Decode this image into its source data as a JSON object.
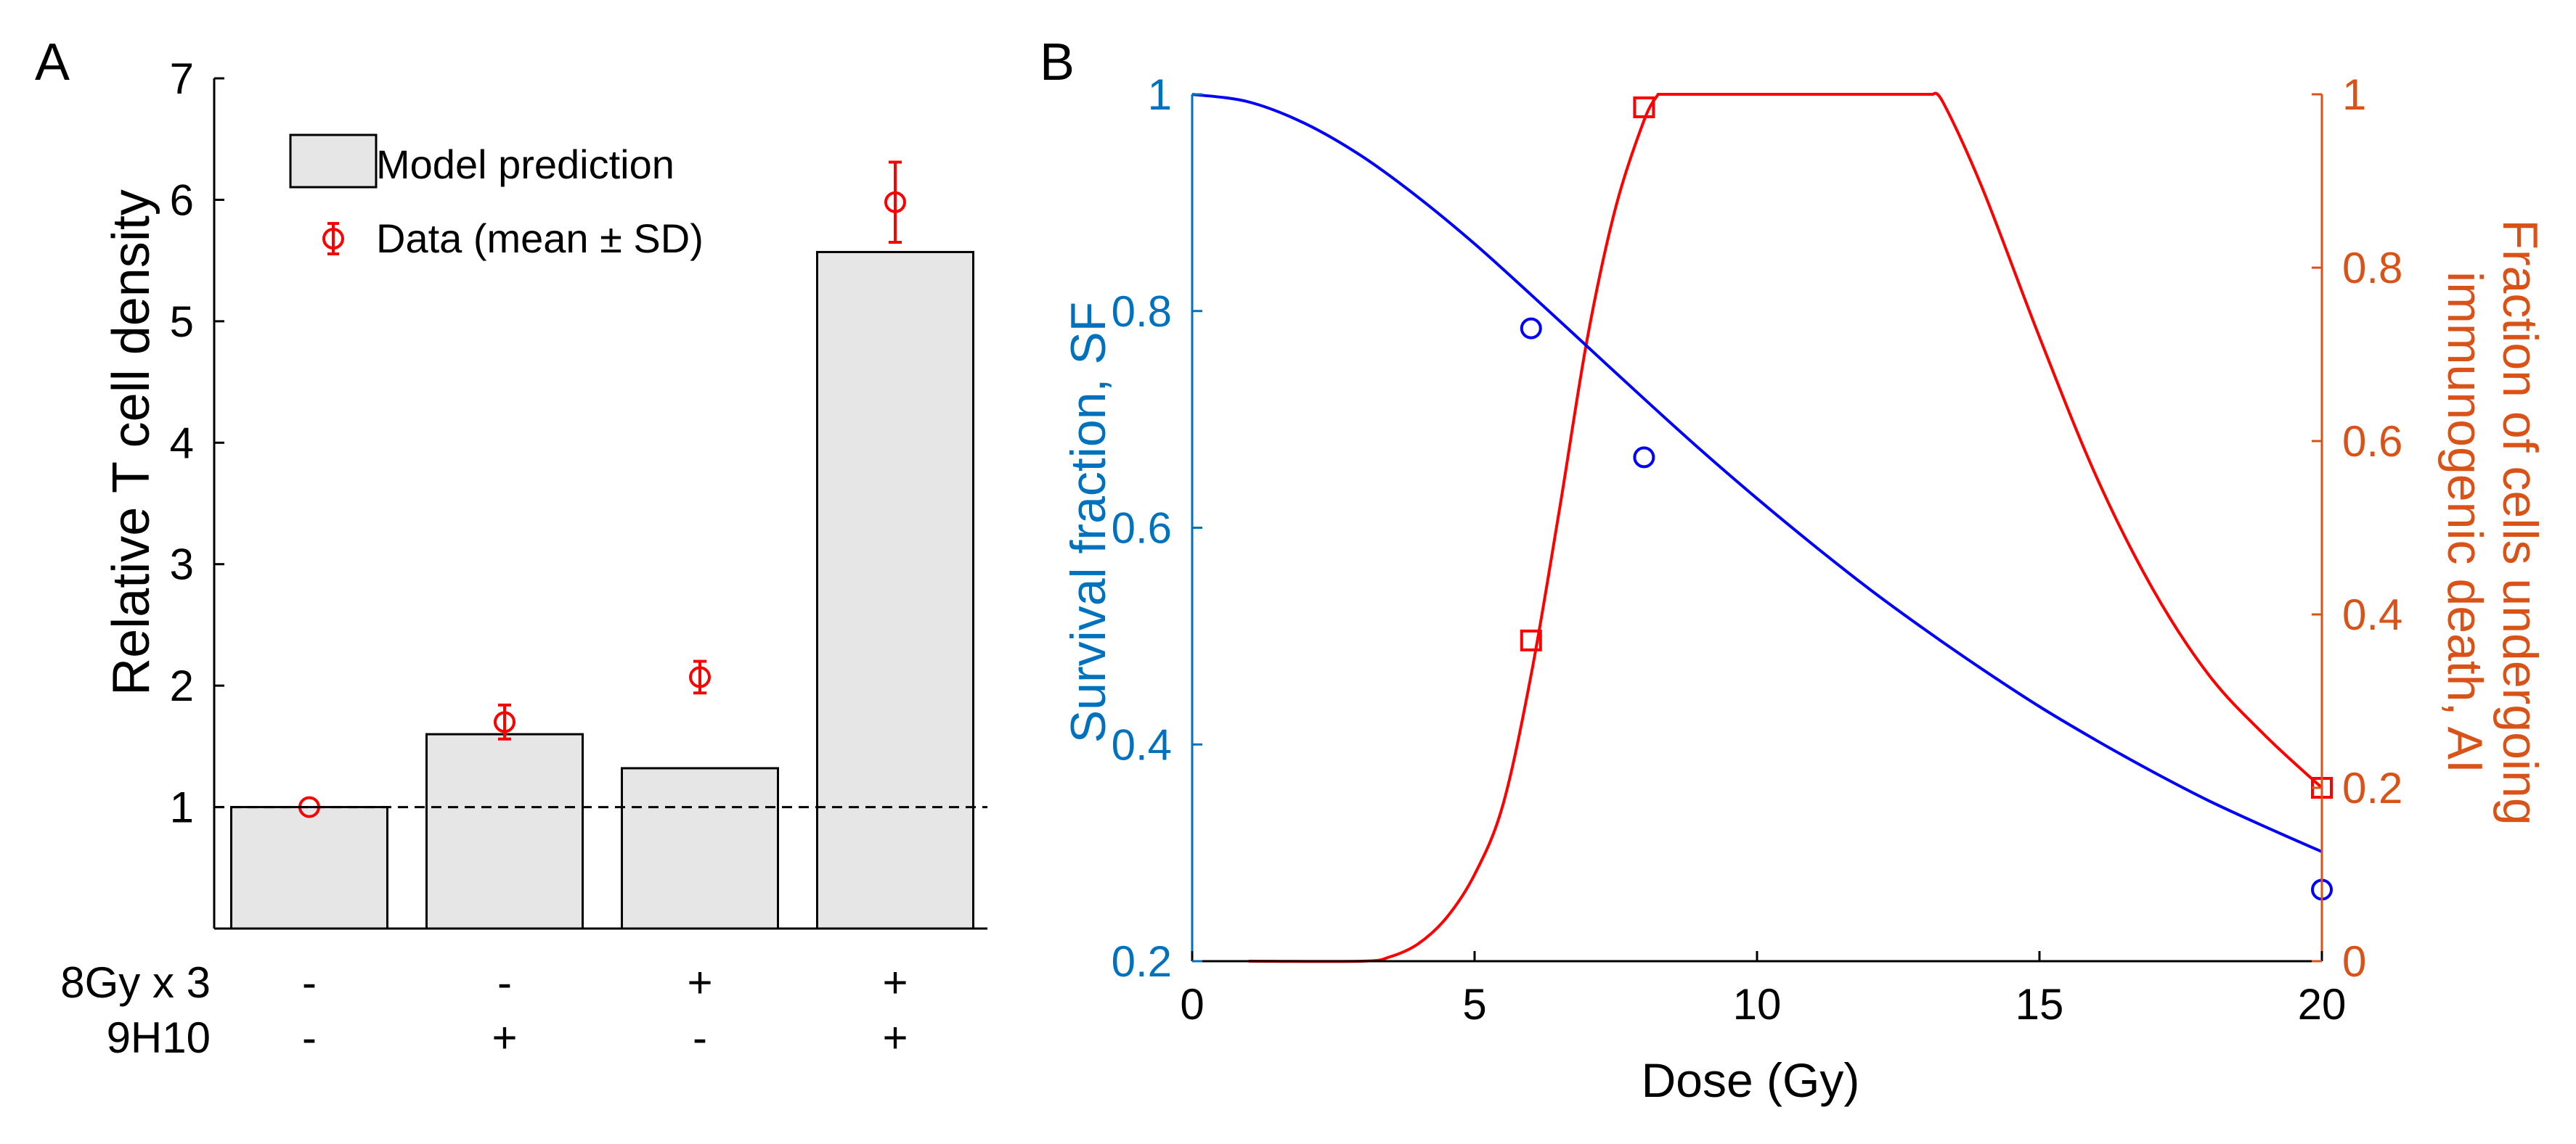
{
  "colors": {
    "blue_axis": "#0072BD",
    "orange_axis": "#D95319",
    "blue_line": "#0000FF",
    "red_line": "#FF0000",
    "bar_fill": "#E6E6E6",
    "black": "#000000"
  },
  "chart_data": [
    {
      "panel_label": "A",
      "type": "bar",
      "ylabel": "Relative T cell density",
      "ylim": [
        0,
        7
      ],
      "yticks": [
        "1",
        "2",
        "3",
        "4",
        "5",
        "6",
        "7"
      ],
      "reference_line": 1,
      "categories": [
        "1",
        "2",
        "3",
        "4"
      ],
      "condition_rows": [
        {
          "label": "8Gy x 3",
          "values": [
            "-",
            "-",
            "+",
            "+"
          ]
        },
        {
          "label": "9H10",
          "values": [
            "-",
            "+",
            "-",
            "+"
          ]
        }
      ],
      "series": [
        {
          "name": "Model prediction",
          "kind": "bar",
          "values": [
            1.0,
            1.6,
            1.32,
            5.57
          ]
        },
        {
          "name": "Data (mean ± SD)",
          "kind": "errorbar",
          "values": [
            1.0,
            1.7,
            2.07,
            5.98
          ],
          "sd": [
            0.0,
            0.14,
            0.13,
            0.33
          ]
        }
      ],
      "legend": {
        "position": "top-left",
        "bar_label": "Model prediction",
        "data_label": "Data (mean ± SD)"
      }
    },
    {
      "panel_label": "B",
      "type": "line",
      "xlabel": "Dose (Gy)",
      "xlim": [
        0,
        20
      ],
      "xticks": [
        "0",
        "5",
        "10",
        "15",
        "20"
      ],
      "left_axis": {
        "label": "Survival fraction, SF",
        "ylim": [
          0.2,
          1.0
        ],
        "ticks": [
          "0.2",
          "0.4",
          "0.6",
          "0.8",
          "1"
        ]
      },
      "right_axis": {
        "label_line1": "Fraction of cells undergoing",
        "label_line2": "immunogenic death, AI",
        "ylim": [
          0,
          1
        ],
        "ticks": [
          "0",
          "0.2",
          "0.4",
          "0.6",
          "0.8",
          "1"
        ]
      },
      "series": [
        {
          "name": "Survival fraction model",
          "axis": "left",
          "kind": "line",
          "x": [
            0,
            1,
            2,
            3,
            4,
            5,
            6,
            7,
            8,
            9,
            10,
            11,
            12,
            13,
            14,
            15,
            16,
            17,
            18,
            19,
            20
          ],
          "y": [
            1.0,
            0.993,
            0.973,
            0.943,
            0.905,
            0.862,
            0.815,
            0.767,
            0.719,
            0.672,
            0.627,
            0.584,
            0.543,
            0.505,
            0.469,
            0.435,
            0.404,
            0.375,
            0.348,
            0.324,
            0.301
          ]
        },
        {
          "name": "Survival fraction data",
          "axis": "left",
          "kind": "markers",
          "marker": "circle",
          "x": [
            6,
            8,
            20
          ],
          "y": [
            0.784,
            0.665,
            0.266
          ]
        },
        {
          "name": "Immunogenic death model",
          "axis": "right",
          "kind": "line",
          "x": [
            1,
            3,
            3.5,
            4,
            4.5,
            5,
            5.5,
            6,
            6.5,
            7,
            7.5,
            8,
            8.25,
            13.1,
            13.3,
            14,
            15,
            16,
            17,
            18,
            19,
            20
          ],
          "y": [
            0.0,
            0.0,
            0.005,
            0.02,
            0.05,
            0.1,
            0.18,
            0.33,
            0.52,
            0.72,
            0.87,
            0.97,
            1.0,
            1.0,
            0.99,
            0.89,
            0.72,
            0.56,
            0.43,
            0.33,
            0.26,
            0.2
          ]
        },
        {
          "name": "Immunogenic death data",
          "axis": "right",
          "kind": "markers",
          "marker": "square",
          "x": [
            6,
            8,
            20
          ],
          "y": [
            0.37,
            0.985,
            0.2
          ]
        }
      ]
    }
  ]
}
